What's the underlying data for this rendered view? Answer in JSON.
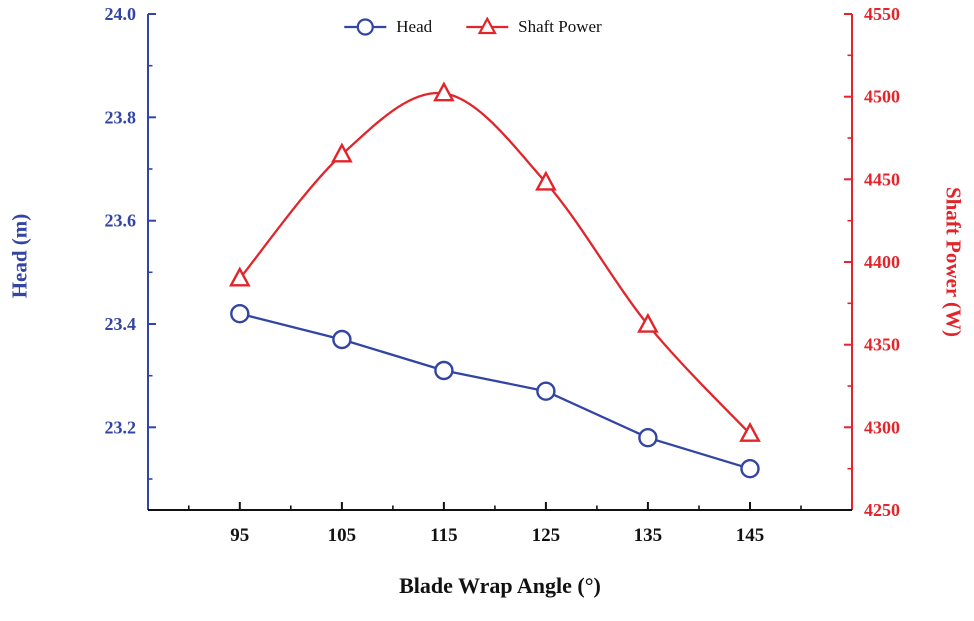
{
  "chart_data": {
    "type": "line",
    "title": "",
    "xlabel": "Blade Wrap Angle (°)",
    "x": [
      95,
      105,
      115,
      125,
      135,
      145
    ],
    "xlim": [
      86,
      155
    ],
    "x_major_ticks": [
      95,
      105,
      115,
      125,
      135,
      145
    ],
    "x_tick_labels": [
      "95",
      "105",
      "115",
      "125",
      "135",
      "145"
    ],
    "x_minor_step": 5,
    "grid": false,
    "left_axis": {
      "label": "Head (m)",
      "color": "#3345a3",
      "min": 23.04,
      "max": 24.0,
      "major_ticks": [
        23.2,
        23.4,
        23.6,
        23.8,
        24.0
      ],
      "tick_labels": [
        "23.2",
        "23.4",
        "23.6",
        "23.8",
        "24.0"
      ],
      "minor_step": 0.1
    },
    "right_axis": {
      "label": "Shaft Power (W)",
      "color": "#e1252b",
      "min": 4250,
      "max": 4550,
      "major_ticks": [
        4250,
        4300,
        4350,
        4400,
        4450,
        4500,
        4550
      ],
      "tick_labels": [
        "4250",
        "4300",
        "4350",
        "4400",
        "4450",
        "4500",
        "4550"
      ],
      "minor_step": 25
    },
    "bottom_axis_color": "#111111",
    "series": [
      {
        "name": "Head",
        "axis": "left",
        "color": "#3345a3",
        "marker": "circle",
        "smooth": false,
        "values": [
          23.42,
          23.37,
          23.31,
          23.27,
          23.18,
          23.12
        ]
      },
      {
        "name": "Shaft Power",
        "axis": "right",
        "color": "#e1252b",
        "marker": "triangle",
        "smooth": true,
        "values": [
          4390,
          4465,
          4502,
          4448,
          4362,
          4296
        ]
      }
    ],
    "legend": {
      "position": "top-center",
      "entries": [
        "Head",
        "Shaft Power"
      ]
    }
  }
}
